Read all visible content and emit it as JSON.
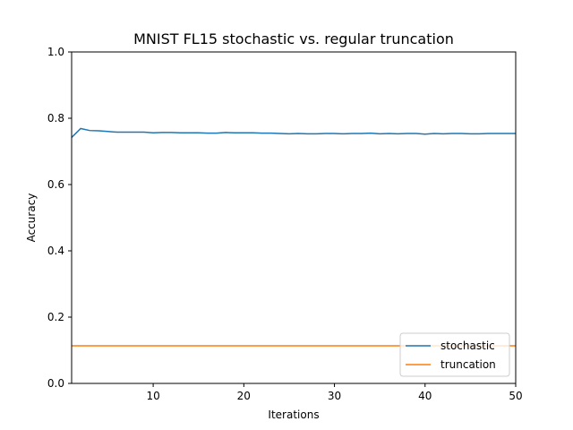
{
  "chart_data": {
    "type": "line",
    "title": "MNIST FL15 stochastic vs. regular truncation",
    "xlabel": "Iterations",
    "ylabel": "Accuracy",
    "xlim": [
      1,
      50
    ],
    "ylim": [
      0.0,
      1.0
    ],
    "x_ticks": [
      "10",
      "20",
      "30",
      "40",
      "50"
    ],
    "y_ticks": [
      "0.0",
      "0.2",
      "0.4",
      "0.6",
      "0.8",
      "1.0"
    ],
    "grid": false,
    "legend_position": "lower right",
    "x": [
      1,
      2,
      3,
      4,
      5,
      6,
      7,
      8,
      9,
      10,
      11,
      12,
      13,
      14,
      15,
      16,
      17,
      18,
      19,
      20,
      21,
      22,
      23,
      24,
      25,
      26,
      27,
      28,
      29,
      30,
      31,
      32,
      33,
      34,
      35,
      36,
      37,
      38,
      39,
      40,
      41,
      42,
      43,
      44,
      45,
      46,
      47,
      48,
      49,
      50
    ],
    "series": [
      {
        "name": "stochastic",
        "color": "#1f77b4",
        "values": [
          0.742,
          0.769,
          0.763,
          0.762,
          0.76,
          0.758,
          0.758,
          0.758,
          0.758,
          0.756,
          0.757,
          0.757,
          0.756,
          0.756,
          0.756,
          0.755,
          0.755,
          0.757,
          0.756,
          0.756,
          0.756,
          0.755,
          0.755,
          0.754,
          0.753,
          0.754,
          0.753,
          0.753,
          0.754,
          0.754,
          0.753,
          0.754,
          0.754,
          0.755,
          0.753,
          0.754,
          0.753,
          0.754,
          0.754,
          0.752,
          0.754,
          0.753,
          0.754,
          0.754,
          0.753,
          0.753,
          0.754,
          0.754,
          0.754,
          0.754
        ]
      },
      {
        "name": "truncation",
        "color": "#ff7f0e",
        "values": [
          0.1135,
          0.1135,
          0.1135,
          0.1135,
          0.1135,
          0.1135,
          0.1135,
          0.1135,
          0.1135,
          0.1135,
          0.1135,
          0.1135,
          0.1135,
          0.1135,
          0.1135,
          0.1135,
          0.1135,
          0.1135,
          0.1135,
          0.1135,
          0.1135,
          0.1135,
          0.1135,
          0.1135,
          0.1135,
          0.1135,
          0.1135,
          0.1135,
          0.1135,
          0.1135,
          0.1135,
          0.1135,
          0.1135,
          0.1135,
          0.1135,
          0.1135,
          0.1135,
          0.1135,
          0.1135,
          0.1135,
          0.1135,
          0.1135,
          0.1135,
          0.1135,
          0.1135,
          0.1135,
          0.1135,
          0.1135,
          0.1135,
          0.1135
        ]
      }
    ]
  }
}
